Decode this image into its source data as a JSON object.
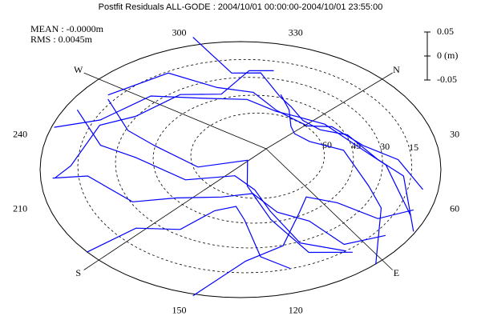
{
  "chart_data": {
    "type": "skyplot",
    "title": "Postfit Residuals ALL-GODE : 2004/10/01 00:00:00-2004/10/01 23:55:00",
    "annotations": [
      "MEAN : -0.0000m",
      "RMS : 0.0045m"
    ],
    "color": "#0000ff",
    "azimuth_ticks": [
      {
        "value": 0,
        "label": "N"
      },
      30,
      60,
      {
        "value": 90,
        "label": "E"
      },
      120,
      150,
      {
        "value": 180,
        "label": "S"
      },
      210,
      240,
      {
        "value": 270,
        "label": "W"
      },
      300,
      330
    ],
    "radial_lines": [
      0,
      90,
      180,
      270
    ],
    "elevation_ticks": [
      15,
      30,
      45,
      60
    ],
    "scale_ticks": [
      0.05,
      {
        "value": 0,
        "label": "0 (m)"
      },
      -0.05
    ],
    "series": [
      {
        "azimuth": [
          240,
          255,
          270,
          290,
          310,
          330,
          350,
          10,
          30,
          50,
          65
        ],
        "elevation": [
          3,
          15,
          28,
          40,
          50,
          56,
          57,
          52,
          42,
          28,
          10
        ],
        "residual": [
          0.02,
          -0.015,
          0.01,
          -0.005,
          0.004,
          -0.003,
          0.002,
          0.005,
          -0.006,
          0.012,
          -0.02
        ]
      },
      {
        "azimuth": [
          270,
          285,
          300,
          315,
          330,
          345,
          0,
          15,
          30,
          45,
          60
        ],
        "elevation": [
          5,
          20,
          33,
          45,
          55,
          60,
          58,
          50,
          38,
          22,
          6
        ],
        "residual": [
          -0.025,
          0.012,
          -0.008,
          0.006,
          -0.003,
          0.002,
          -0.004,
          0.006,
          -0.008,
          0.01,
          0.02
        ]
      },
      {
        "azimuth": [
          300,
          310,
          320,
          330,
          340,
          355,
          10,
          25,
          40,
          55,
          70
        ],
        "elevation": [
          5,
          18,
          30,
          42,
          52,
          58,
          55,
          45,
          32,
          18,
          5
        ],
        "residual": [
          0.03,
          -0.02,
          0.01,
          -0.006,
          0.004,
          0.002,
          -0.003,
          0.005,
          -0.01,
          0.015,
          -0.025
        ]
      },
      {
        "azimuth": [
          225,
          215,
          200,
          185,
          165,
          140,
          120,
          105,
          95,
          85
        ],
        "elevation": [
          5,
          18,
          32,
          45,
          58,
          62,
          52,
          38,
          22,
          6
        ],
        "residual": [
          -0.02,
          0.015,
          -0.01,
          0.005,
          -0.003,
          0.003,
          -0.005,
          0.008,
          -0.012,
          0.02
        ]
      },
      {
        "azimuth": [
          250,
          240,
          225,
          200,
          170,
          140,
          125,
          112,
          100
        ],
        "elevation": [
          8,
          22,
          38,
          55,
          70,
          66,
          50,
          32,
          10
        ],
        "residual": [
          0.018,
          -0.012,
          0.007,
          -0.004,
          0.002,
          -0.003,
          0.006,
          -0.01,
          0.02
        ]
      },
      {
        "azimuth": [
          190,
          180,
          170,
          160,
          150,
          140,
          130,
          120
        ],
        "elevation": [
          5,
          20,
          35,
          48,
          55,
          45,
          28,
          8
        ],
        "residual": [
          -0.03,
          0.015,
          -0.008,
          0.004,
          -0.003,
          0.006,
          -0.012,
          0.025
        ]
      },
      {
        "azimuth": [
          260,
          250,
          235,
          210,
          180,
          150,
          125,
          110,
          98
        ],
        "elevation": [
          15,
          30,
          45,
          62,
          80,
          68,
          45,
          25,
          8
        ],
        "residual": [
          0.012,
          -0.008,
          0.005,
          -0.003,
          0.002,
          -0.004,
          0.006,
          -0.01,
          0.018
        ]
      },
      {
        "azimuth": [
          330,
          340,
          350,
          5,
          20,
          40,
          60,
          75,
          90
        ],
        "elevation": [
          40,
          55,
          65,
          70,
          65,
          50,
          35,
          20,
          5
        ],
        "residual": [
          -0.006,
          0.004,
          -0.002,
          0.003,
          -0.004,
          0.006,
          -0.009,
          0.014,
          -0.022
        ]
      },
      {
        "azimuth": [
          215,
          230,
          245,
          260,
          280,
          300,
          315,
          325
        ],
        "elevation": [
          5,
          12,
          20,
          28,
          35,
          38,
          30,
          15
        ],
        "residual": [
          0.025,
          -0.018,
          0.012,
          -0.008,
          0.006,
          -0.01,
          0.014,
          -0.02
        ]
      },
      {
        "azimuth": [
          150,
          135,
          120,
          108,
          95,
          85,
          75,
          70
        ],
        "elevation": [
          5,
          18,
          32,
          45,
          55,
          40,
          22,
          5
        ],
        "residual": [
          -0.022,
          0.014,
          -0.008,
          0.005,
          -0.004,
          0.007,
          -0.012,
          0.02
        ]
      }
    ]
  }
}
